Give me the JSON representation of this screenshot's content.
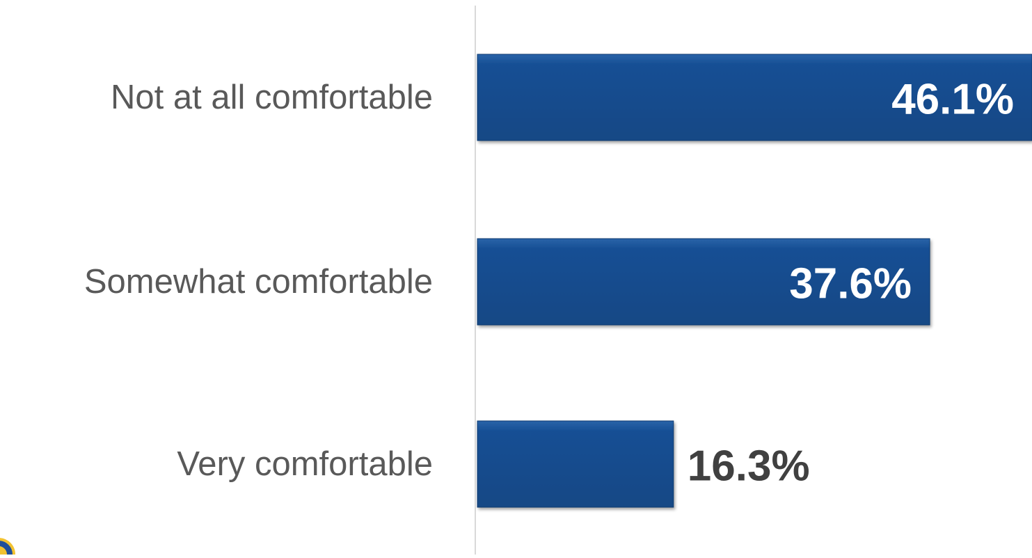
{
  "chart_data": {
    "type": "bar",
    "orientation": "horizontal",
    "categories": [
      "Not at all comfortable",
      "Somewhat comfortable",
      "Very comfortable"
    ],
    "values": [
      46.1,
      37.6,
      16.3
    ],
    "value_labels": [
      "46.1%",
      "37.6%",
      "16.3%"
    ],
    "value_unit": "%",
    "xlim": [
      0,
      46.1
    ],
    "grid": false,
    "legend": "none",
    "colors": {
      "bar": "#164f94",
      "bar_edge": "#0f3a6f",
      "label_inside": "#ffffff",
      "label_outside": "#404040",
      "category_text": "#595959",
      "axis_line": "#d9d9d9"
    }
  },
  "logo": {
    "name": "seal-logo",
    "colors": [
      "#1f4e9a",
      "#f2c230"
    ]
  }
}
